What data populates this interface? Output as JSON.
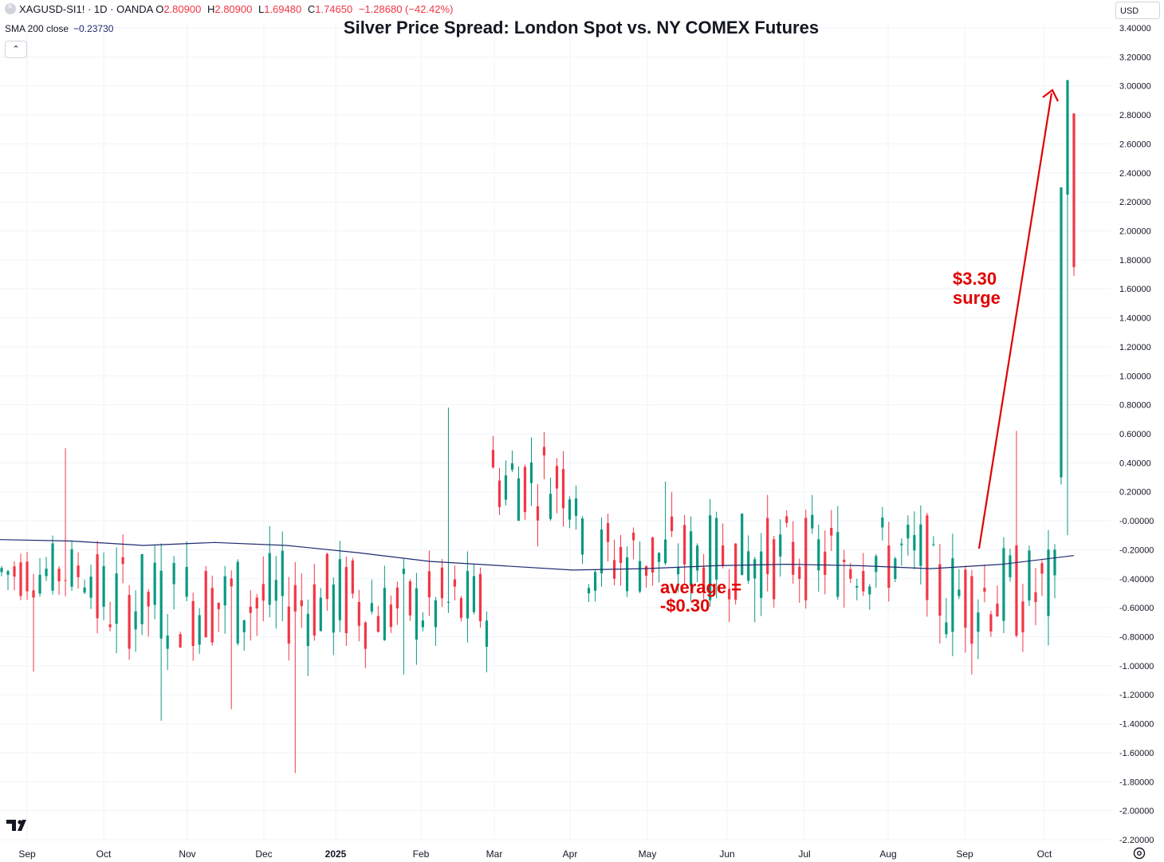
{
  "legend": {
    "symbol": "XAGUSD-SI1! · 1D · OANDA",
    "o_label": "O",
    "o_value": "2.80900",
    "h_label": "H",
    "h_value": "2.80900",
    "l_label": "L",
    "l_value": "1.69480",
    "c_label": "C",
    "c_value": "1.74650",
    "change": "−1.28680 (−42.42%)"
  },
  "indicator": {
    "label": "SMA 200 close",
    "value": "−0.23730"
  },
  "collapse_glyph": "⌃",
  "currency": "USD",
  "colors": {
    "up": "#089981",
    "down": "#f23645",
    "sma": "#1e2a6e",
    "annotation": "#e00000",
    "grid": "#f0f3fa"
  },
  "chart_data": {
    "type": "candlestick",
    "title": "Silver Price Spread: London Spot vs. NY COMEX Futures",
    "y_tick_labels": [
      "3.40000",
      "3.20000",
      "3.00000",
      "2.80000",
      "2.60000",
      "2.40000",
      "2.20000",
      "2.00000",
      "1.80000",
      "1.60000",
      "1.40000",
      "1.20000",
      "1.00000",
      "0.80000",
      "0.60000",
      "0.40000",
      "0.20000",
      "-0.00000",
      "-0.20000",
      "-0.40000",
      "-0.60000",
      "-0.80000",
      "-1.00000",
      "-1.20000",
      "-1.40000",
      "-1.60000",
      "-1.80000",
      "-2.00000",
      "-2.20000"
    ],
    "ylim": [
      -2.2,
      3.4
    ],
    "x_tick_labels": [
      "Sep",
      "Oct",
      "Nov",
      "Dec",
      "2025",
      "Feb",
      "Mar",
      "Apr",
      "May",
      "Jun",
      "Jul",
      "Aug",
      "Sep",
      "Oct"
    ],
    "x_tick_bold": [
      false,
      false,
      false,
      false,
      true,
      false,
      false,
      false,
      false,
      false,
      false,
      false,
      false,
      false
    ],
    "series": [
      {
        "name": "XAGUSD-SI1!",
        "segments": [
          {
            "n": 15,
            "base": -0.35,
            "spread": 0.2,
            "extremes": [
              [
                -1.04,
                "low"
              ],
              [
                0.5,
                "high"
              ]
            ]
          },
          {
            "n": 42,
            "base": -0.55,
            "spread": 0.35,
            "extremes": [
              [
                -1.38,
                "low"
              ],
              [
                -1.3,
                "low"
              ],
              [
                -1.74,
                "low"
              ]
            ]
          },
          {
            "n": 20,
            "base": -0.6,
            "spread": 0.3,
            "extremes": [
              [
                -1.06,
                "low"
              ],
              [
                0.78,
                "high"
              ]
            ]
          },
          {
            "n": 14,
            "base": 0.3,
            "spread": 0.3
          },
          {
            "n": 55,
            "base": -0.25,
            "spread": 0.3,
            "extremes": [
              [
                0.27,
                "high"
              ],
              [
                -0.7,
                "low"
              ],
              [
                -0.6,
                "low"
              ]
            ]
          },
          {
            "n": 20,
            "base": -0.5,
            "spread": 0.35,
            "extremes": [
              [
                -1.06,
                "low"
              ],
              [
                0.62,
                "high"
              ]
            ]
          }
        ],
        "final": [
          [
            0.3,
            2.25,
            0.25,
            2.3
          ],
          [
            2.25,
            3.04,
            -0.1,
            3.04
          ],
          [
            2.81,
            2.81,
            1.69,
            1.75
          ]
        ]
      }
    ],
    "sma": {
      "name": "SMA 200 close",
      "values": [
        -0.13,
        -0.14,
        -0.17,
        -0.15,
        -0.17,
        -0.22,
        -0.28,
        -0.31,
        -0.34,
        -0.33,
        -0.31,
        -0.3,
        -0.31,
        -0.33,
        -0.3,
        -0.24
      ]
    },
    "annotations": [
      {
        "text": "average =",
        "color": "#e00000"
      },
      {
        "text": "-$0.30",
        "color": "#e00000"
      },
      {
        "text": "$3.30",
        "color": "#e00000"
      },
      {
        "text": "surge",
        "color": "#e00000"
      }
    ]
  }
}
